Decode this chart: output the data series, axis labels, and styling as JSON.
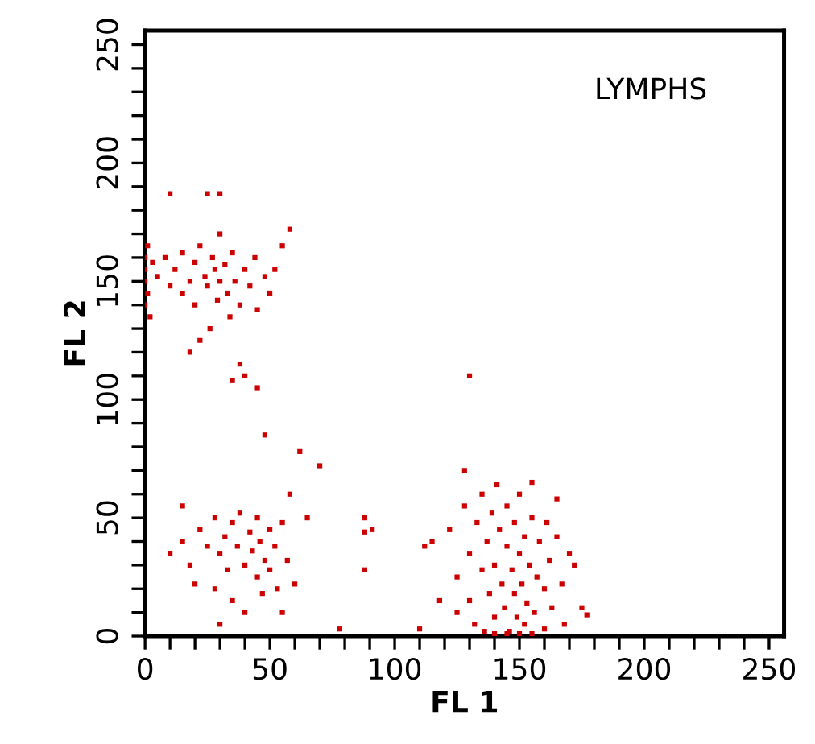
{
  "chart_data": {
    "type": "scatter",
    "xlabel": "FL 1",
    "ylabel": "FL 2",
    "annotations": [
      "LYMPHS"
    ],
    "xlim": [
      0,
      256
    ],
    "ylim": [
      0,
      256
    ],
    "xticks": [
      0,
      {
        "value": 10,
        "label": null
      },
      {
        "value": 20,
        "label": null
      },
      {
        "value": 30,
        "label": null
      },
      {
        "value": 40,
        "label": null
      },
      50,
      {
        "value": 60,
        "label": null
      },
      {
        "value": 70,
        "label": null
      },
      {
        "value": 80,
        "label": null
      },
      {
        "value": 90,
        "label": null
      },
      100,
      {
        "value": 110,
        "label": null
      },
      {
        "value": 120,
        "label": null
      },
      {
        "value": 130,
        "label": null
      },
      {
        "value": 140,
        "label": null
      },
      150,
      {
        "value": 160,
        "label": null
      },
      {
        "value": 170,
        "label": null
      },
      {
        "value": 180,
        "label": null
      },
      {
        "value": 190,
        "label": null
      },
      200,
      {
        "value": 210,
        "label": null
      },
      {
        "value": 220,
        "label": null
      },
      {
        "value": 230,
        "label": null
      },
      {
        "value": 240,
        "label": null
      },
      250
    ],
    "yticks": [
      0,
      {
        "value": 10,
        "label": null
      },
      {
        "value": 20,
        "label": null
      },
      {
        "value": 30,
        "label": null
      },
      {
        "value": 40,
        "label": null
      },
      50,
      {
        "value": 60,
        "label": null
      },
      {
        "value": 70,
        "label": null
      },
      {
        "value": 80,
        "label": null
      },
      {
        "value": 90,
        "label": null
      },
      100,
      {
        "value": 110,
        "label": null
      },
      {
        "value": 120,
        "label": null
      },
      {
        "value": 130,
        "label": null
      },
      {
        "value": 140,
        "label": null
      },
      150,
      {
        "value": 160,
        "label": null
      },
      {
        "value": 170,
        "label": null
      },
      {
        "value": 180,
        "label": null
      },
      {
        "value": 190,
        "label": null
      },
      200,
      {
        "value": 210,
        "label": null
      },
      {
        "value": 220,
        "label": null
      },
      {
        "value": 230,
        "label": null
      },
      {
        "value": 240,
        "label": null
      },
      250
    ],
    "grid": false,
    "marker": "square",
    "series": [
      {
        "color": "#cc0000",
        "x": [
          0,
          0,
          0,
          0,
          1,
          1,
          2,
          3,
          5,
          8,
          10,
          12,
          15,
          15,
          18,
          20,
          20,
          22,
          24,
          25,
          26,
          27,
          28,
          29,
          30,
          30,
          32,
          33,
          34,
          35,
          36,
          38,
          40,
          42,
          44,
          45,
          48,
          50,
          25,
          30,
          10,
          22,
          18,
          38,
          35,
          40,
          55,
          58,
          52,
          10,
          15,
          18,
          20,
          22,
          25,
          28,
          28,
          30,
          32,
          33,
          35,
          35,
          37,
          38,
          40,
          40,
          42,
          43,
          45,
          45,
          46,
          47,
          48,
          50,
          50,
          52,
          53,
          55,
          57,
          58,
          60,
          62,
          55,
          48,
          45,
          70,
          65,
          30,
          15,
          88,
          88,
          91,
          88,
          110,
          112,
          115,
          118,
          130,
          78,
          122,
          125,
          125,
          128,
          128,
          130,
          130,
          132,
          133,
          135,
          135,
          136,
          137,
          138,
          139,
          140,
          140,
          141,
          142,
          143,
          144,
          145,
          145,
          146,
          147,
          148,
          148,
          149,
          150,
          150,
          151,
          152,
          152,
          153,
          154,
          155,
          155,
          156,
          157,
          158,
          160,
          160,
          161,
          162,
          163,
          165,
          165,
          167,
          168,
          170,
          172,
          175,
          177,
          145,
          150,
          155,
          140
        ],
        "values": [
          150,
          160,
          140,
          155,
          145,
          165,
          135,
          158,
          152,
          160,
          148,
          155,
          162,
          145,
          150,
          158,
          140,
          165,
          152,
          148,
          130,
          160,
          155,
          142,
          150,
          170,
          157,
          145,
          135,
          162,
          150,
          140,
          155,
          148,
          160,
          138,
          152,
          145,
          187,
          187,
          187,
          125,
          120,
          115,
          108,
          110,
          165,
          172,
          155,
          35,
          40,
          30,
          22,
          45,
          38,
          50,
          20,
          35,
          42,
          28,
          48,
          15,
          38,
          52,
          30,
          10,
          44,
          36,
          25,
          50,
          40,
          18,
          32,
          45,
          28,
          38,
          20,
          48,
          32,
          60,
          22,
          78,
          10,
          85,
          105,
          72,
          50,
          5,
          55,
          50,
          44,
          45,
          28,
          3,
          38,
          40,
          15,
          110,
          3,
          45,
          25,
          10,
          70,
          55,
          35,
          15,
          5,
          48,
          28,
          60,
          2,
          40,
          18,
          52,
          8,
          30,
          64,
          45,
          22,
          12,
          38,
          55,
          2,
          28,
          18,
          48,
          8,
          35,
          60,
          22,
          42,
          5,
          14,
          30,
          50,
          65,
          10,
          25,
          40,
          3,
          20,
          48,
          32,
          12,
          42,
          58,
          22,
          5,
          35,
          30,
          12,
          9,
          1,
          1,
          1,
          1
        ]
      }
    ]
  }
}
